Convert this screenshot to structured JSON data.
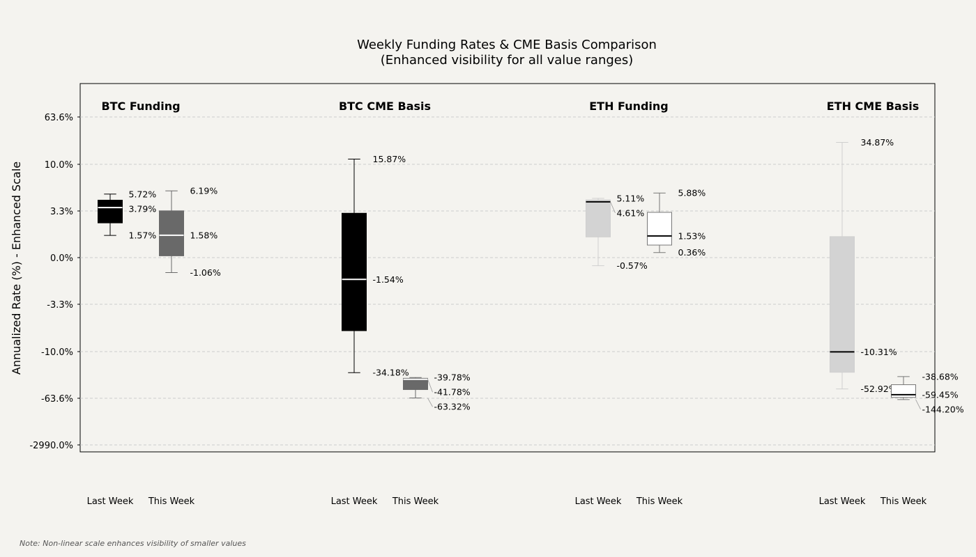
{
  "chart_data": {
    "type": "box",
    "title": "Weekly Funding Rates & CME Basis Comparison",
    "subtitle": "(Enhanced visibility for all value ranges)",
    "ylabel": "Annualized Rate (%) - Enhanced Scale",
    "yscale": "non-linear (enhanced)",
    "yticks": [
      "63.6%",
      "10.0%",
      "3.3%",
      "0.0%",
      "-3.3%",
      "-10.0%",
      "-63.6%",
      "-2990.0%"
    ],
    "grid": true,
    "groups": [
      {
        "name": "BTC Funding",
        "boxes": [
          {
            "label": "Last Week",
            "high": 5.72,
            "median": 3.79,
            "low": 1.57,
            "color": "#000000"
          },
          {
            "label": "This Week",
            "high": 6.19,
            "median": 1.58,
            "low": -1.06,
            "color": "#696969"
          }
        ]
      },
      {
        "name": "BTC CME Basis",
        "boxes": [
          {
            "label": "Last Week",
            "high": 15.87,
            "median": -1.54,
            "low": -34.18,
            "color": "#000000"
          },
          {
            "label": "This Week",
            "high": -39.78,
            "median": -41.78,
            "low": -63.32,
            "color": "#696969"
          }
        ]
      },
      {
        "name": "ETH Funding",
        "boxes": [
          {
            "label": "Last Week",
            "high": 5.11,
            "median": 4.61,
            "low": -0.57,
            "color": "#d3d3d3"
          },
          {
            "label": "This Week",
            "high": 5.88,
            "median": 1.53,
            "low": 0.36,
            "color": "#ffffff"
          }
        ]
      },
      {
        "name": "ETH CME Basis",
        "boxes": [
          {
            "label": "Last Week",
            "high": 34.87,
            "median": -10.31,
            "low": -52.92,
            "color": "#d3d3d3"
          },
          {
            "label": "This Week",
            "high": -38.68,
            "median": -59.45,
            "low": -144.2,
            "color": "#ffffff"
          }
        ]
      }
    ]
  },
  "footer": {
    "note": "Note: Non-linear scale enhances visibility of smaller values"
  }
}
